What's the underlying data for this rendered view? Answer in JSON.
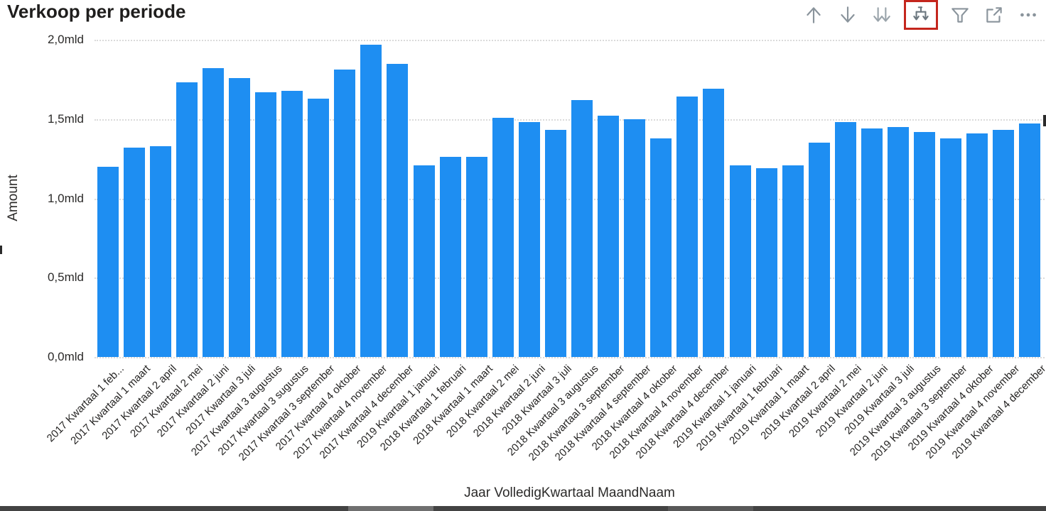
{
  "header": {
    "title": "Verkoop per periode"
  },
  "toolbar": {
    "icon_color": "#8a949c",
    "highlight_color": "#c4261d",
    "icons": [
      {
        "name": "drill-up"
      },
      {
        "name": "drill-down"
      },
      {
        "name": "go-to-next-level"
      },
      {
        "name": "expand-all-down-one-level",
        "highlighted": true
      },
      {
        "name": "filter"
      },
      {
        "name": "focus-mode"
      },
      {
        "name": "more-options"
      }
    ]
  },
  "chart_data": {
    "type": "bar",
    "title": "Verkoop per periode",
    "xlabel": "Jaar VolledigKwartaal MaandNaam",
    "ylabel": "Amount",
    "unit": "mld",
    "ylim": [
      0,
      2.0
    ],
    "ytick_values": [
      0.0,
      0.5,
      1.0,
      1.5,
      2.0
    ],
    "ytick_labels": [
      "0,0mld",
      "0,5mld",
      "1,0mld",
      "1,5mld",
      "2,0mld"
    ],
    "grid": "dotted horizontal gridlines",
    "legend": "none",
    "bar_color": "#1e8ef2",
    "categories": [
      "2017 Kwartaal 1 feb...",
      "2017 Kwartaal 1 maart",
      "2017 Kwartaal 2 april",
      "2017 Kwartaal 2 mei",
      "2017 Kwartaal 2 juni",
      "2017 Kwartaal 3 juli",
      "2017 Kwartaal 3 augustus",
      "2017 Kwartaal 3 sugustus",
      "2017 Kwartaal 3 september",
      "2017 Kwartaal 4 oktober",
      "2017 Kwartaal 4 november",
      "2017 Kwartaal 4 december",
      "2019 Kwartaal 1 januari",
      "2018 Kwartaal 1 februari",
      "2018 Kwartaal 1 maart",
      "2018 Kwartaal 2 mei",
      "2018 Kwartaal 2 juni",
      "2018 Kwartaal 3 juli",
      "2018 Kwartaal 3 augustus",
      "2018 Kwartaal 3 september",
      "2018 Kwartaal 4 september",
      "2018 Kwartaal 4 oktober",
      "2018 Kwartaal 4 november",
      "2018 Kwartaal 4 december",
      "2019 Kwartaal 1 januari",
      "2019 Kwartaal 1 februari",
      "2019 Kwartaal 1 maart",
      "2019 Kwartaal 2 april",
      "2019 Kwartaal 2 mei",
      "2019 Kwartaal 2 juni",
      "2019 Kwartaal 3 juli",
      "2019 Kwartaal 3 augustus",
      "2019 Kwartaal 3 september",
      "2019 Kwartaal 4 oktober",
      "2019 Kwartaal 4 november",
      "2019 Kwartaal 4 december"
    ],
    "values": [
      1.2,
      1.32,
      1.33,
      1.73,
      1.82,
      1.76,
      1.67,
      1.68,
      1.63,
      1.81,
      1.97,
      1.85,
      1.21,
      1.26,
      1.26,
      1.51,
      1.48,
      1.43,
      1.62,
      1.52,
      1.5,
      1.38,
      1.64,
      1.69,
      1.21,
      1.19,
      1.21,
      1.35,
      1.48,
      1.44,
      1.45,
      1.42,
      1.38,
      1.41,
      1.43,
      1.47
    ]
  }
}
